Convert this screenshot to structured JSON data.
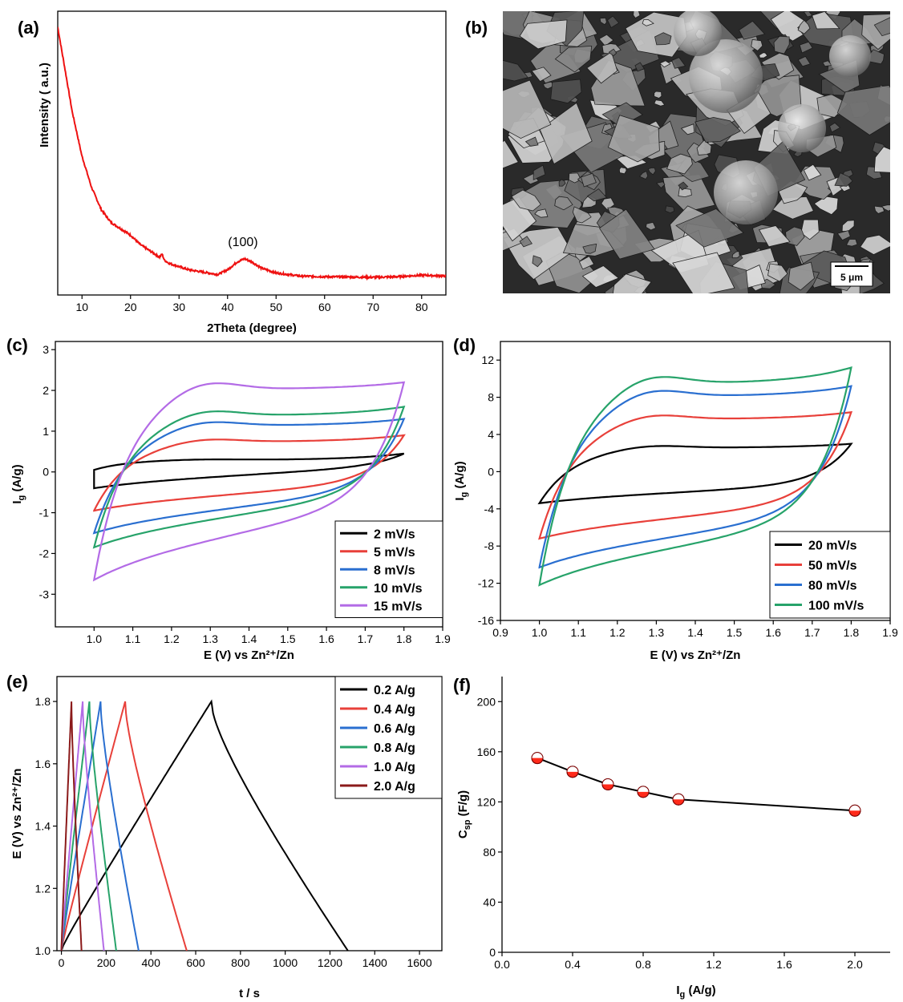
{
  "colors": {
    "xrd": "#ee1111",
    "black": "#000000",
    "red": "#e8403a",
    "blue": "#2a6fd0",
    "green": "#27a36a",
    "purple": "#b36be6",
    "darkred": "#8b1a1a",
    "marker": "#ff2a1a"
  },
  "chart_data": [
    {
      "panel": "(a)",
      "type": "line",
      "xlabel": "2Theta (degree)",
      "ylabel": "Intensity ( a.u.)",
      "xlim": [
        5,
        85
      ],
      "xticks": [
        10,
        20,
        30,
        40,
        50,
        60,
        70,
        80
      ],
      "y_ticks_shown": false,
      "annotation": "(100)",
      "annotation_x": 43.5,
      "series": [
        {
          "x": [
            5,
            6,
            7,
            8,
            10,
            12,
            14,
            16,
            18,
            20,
            22,
            24,
            26,
            26.5,
            27,
            28,
            30,
            32,
            34,
            36,
            38,
            40,
            42,
            43.5,
            45,
            47,
            50,
            55,
            60,
            65,
            70,
            75,
            80,
            85
          ],
          "y": [
            0.95,
            0.86,
            0.77,
            0.68,
            0.54,
            0.44,
            0.37,
            0.33,
            0.31,
            0.29,
            0.26,
            0.24,
            0.22,
            0.23,
            0.21,
            0.2,
            0.19,
            0.18,
            0.175,
            0.17,
            0.165,
            0.18,
            0.205,
            0.215,
            0.205,
            0.185,
            0.17,
            0.16,
            0.158,
            0.157,
            0.156,
            0.158,
            0.163,
            0.16
          ]
        }
      ]
    },
    {
      "panel": "(b)",
      "type": "image",
      "scale_bar": "5 μm"
    },
    {
      "panel": "(c)",
      "type": "line",
      "xlabel": "E (V) vs Zn²⁺/Zn",
      "ylabel": "Ig (A/g)",
      "xlim": [
        0.9,
        1.9
      ],
      "ylim": [
        -3.8,
        3.2
      ],
      "xticks": [
        1.0,
        1.1,
        1.2,
        1.3,
        1.4,
        1.5,
        1.6,
        1.7,
        1.8,
        1.9
      ],
      "yticks": [
        -3,
        -2,
        -1,
        0,
        1,
        2,
        3
      ],
      "legend_position": "bottom-right",
      "series": [
        {
          "name": "2 mV/s",
          "color": "black",
          "e_min": 1.0,
          "e_max": 1.8,
          "anodic_start": 0.05,
          "anodic_plateau": 0.3,
          "anodic_end": 0.45,
          "cathodic_start": 0.1,
          "cathodic_end": -0.4
        },
        {
          "name": "5 mV/s",
          "color": "red",
          "e_min": 1.0,
          "e_max": 1.8,
          "anodic_start": -0.95,
          "anodic_plateau": 0.75,
          "anodic_end": 0.9,
          "cathodic_start": -0.3,
          "cathodic_end": -0.95
        },
        {
          "name": "8 mV/s",
          "color": "blue",
          "e_min": 1.0,
          "e_max": 1.8,
          "anodic_start": -1.5,
          "anodic_plateau": 1.15,
          "anodic_end": 1.3,
          "cathodic_start": -0.5,
          "cathodic_end": -1.5
        },
        {
          "name": "10 mV/s",
          "color": "green",
          "e_min": 1.0,
          "e_max": 1.8,
          "anodic_start": -1.85,
          "anodic_plateau": 1.4,
          "anodic_end": 1.6,
          "cathodic_start": -0.6,
          "cathodic_end": -1.85
        },
        {
          "name": "15 mV/s",
          "color": "purple",
          "e_min": 1.0,
          "e_max": 1.8,
          "anodic_start": -2.65,
          "anodic_plateau": 2.05,
          "anodic_end": 2.2,
          "cathodic_start": -0.85,
          "cathodic_end": -2.65
        }
      ]
    },
    {
      "panel": "(d)",
      "type": "line",
      "xlabel": "E (V) vs Zn²⁺/Zn",
      "ylabel": "Ig (A/g)",
      "xlim": [
        0.9,
        1.9
      ],
      "ylim": [
        -16,
        14
      ],
      "xticks": [
        0.9,
        1.0,
        1.1,
        1.2,
        1.3,
        1.4,
        1.5,
        1.6,
        1.7,
        1.8,
        1.9
      ],
      "yticks": [
        -16,
        -12,
        -8,
        -4,
        0,
        4,
        8,
        12
      ],
      "legend_position": "bottom-right",
      "series": [
        {
          "name": "20 mV/s",
          "color": "black",
          "e_min": 1.0,
          "e_max": 1.8,
          "anodic_start": -3.4,
          "anodic_plateau": 2.6,
          "anodic_end": 3.0,
          "cathodic_start": -1.5,
          "cathodic_end": -3.4
        },
        {
          "name": "50 mV/s",
          "color": "red",
          "e_min": 1.0,
          "e_max": 1.8,
          "anodic_start": -7.2,
          "anodic_plateau": 5.7,
          "anodic_end": 6.4,
          "cathodic_start": -3.5,
          "cathodic_end": -7.2
        },
        {
          "name": "80 mV/s",
          "color": "blue",
          "e_min": 1.0,
          "e_max": 1.8,
          "anodic_start": -10.3,
          "anodic_plateau": 8.2,
          "anodic_end": 9.2,
          "cathodic_start": -4.8,
          "cathodic_end": -10.3
        },
        {
          "name": "100 mV/s",
          "color": "green",
          "e_min": 1.0,
          "e_max": 1.8,
          "anodic_start": -12.2,
          "anodic_plateau": 9.6,
          "anodic_end": 11.2,
          "cathodic_start": -5.5,
          "cathodic_end": -12.2
        }
      ]
    },
    {
      "panel": "(e)",
      "type": "line",
      "xlabel": "t / s",
      "ylabel": "E (V) vs Zn²⁺/Zn",
      "xlim": [
        -20,
        1700
      ],
      "ylim": [
        1.0,
        1.88
      ],
      "xticks": [
        0,
        200,
        400,
        600,
        800,
        1000,
        1200,
        1400,
        1600
      ],
      "yticks": [
        1.0,
        1.2,
        1.4,
        1.6,
        1.8
      ],
      "legend_position": "top-right",
      "series": [
        {
          "name": "0.2 A/g",
          "color": "black",
          "t_peak": 670,
          "t_end": 1280
        },
        {
          "name": "0.4 A/g",
          "color": "red",
          "t_peak": 285,
          "t_end": 560
        },
        {
          "name": "0.6 A/g",
          "color": "blue",
          "t_peak": 175,
          "t_end": 345
        },
        {
          "name": "0.8 A/g",
          "color": "green",
          "t_peak": 125,
          "t_end": 245
        },
        {
          "name": "1.0 A/g",
          "color": "purple",
          "t_peak": 95,
          "t_end": 190
        },
        {
          "name": "2.0 A/g",
          "color": "darkred",
          "t_peak": 45,
          "t_end": 90
        }
      ]
    },
    {
      "panel": "(f)",
      "type": "scatter",
      "xlabel": "Ig (A/g)",
      "ylabel": "Csp (F/g)",
      "xlim": [
        0.0,
        2.2
      ],
      "ylim": [
        0,
        220
      ],
      "xticks": [
        0.0,
        0.4,
        0.8,
        1.2,
        1.6,
        2.0
      ],
      "yticks": [
        0,
        40,
        80,
        120,
        160,
        200
      ],
      "series": [
        {
          "x": [
            0.2,
            0.4,
            0.6,
            0.8,
            1.0,
            2.0
          ],
          "y": [
            155,
            144,
            134,
            128,
            122,
            113
          ]
        }
      ]
    }
  ]
}
